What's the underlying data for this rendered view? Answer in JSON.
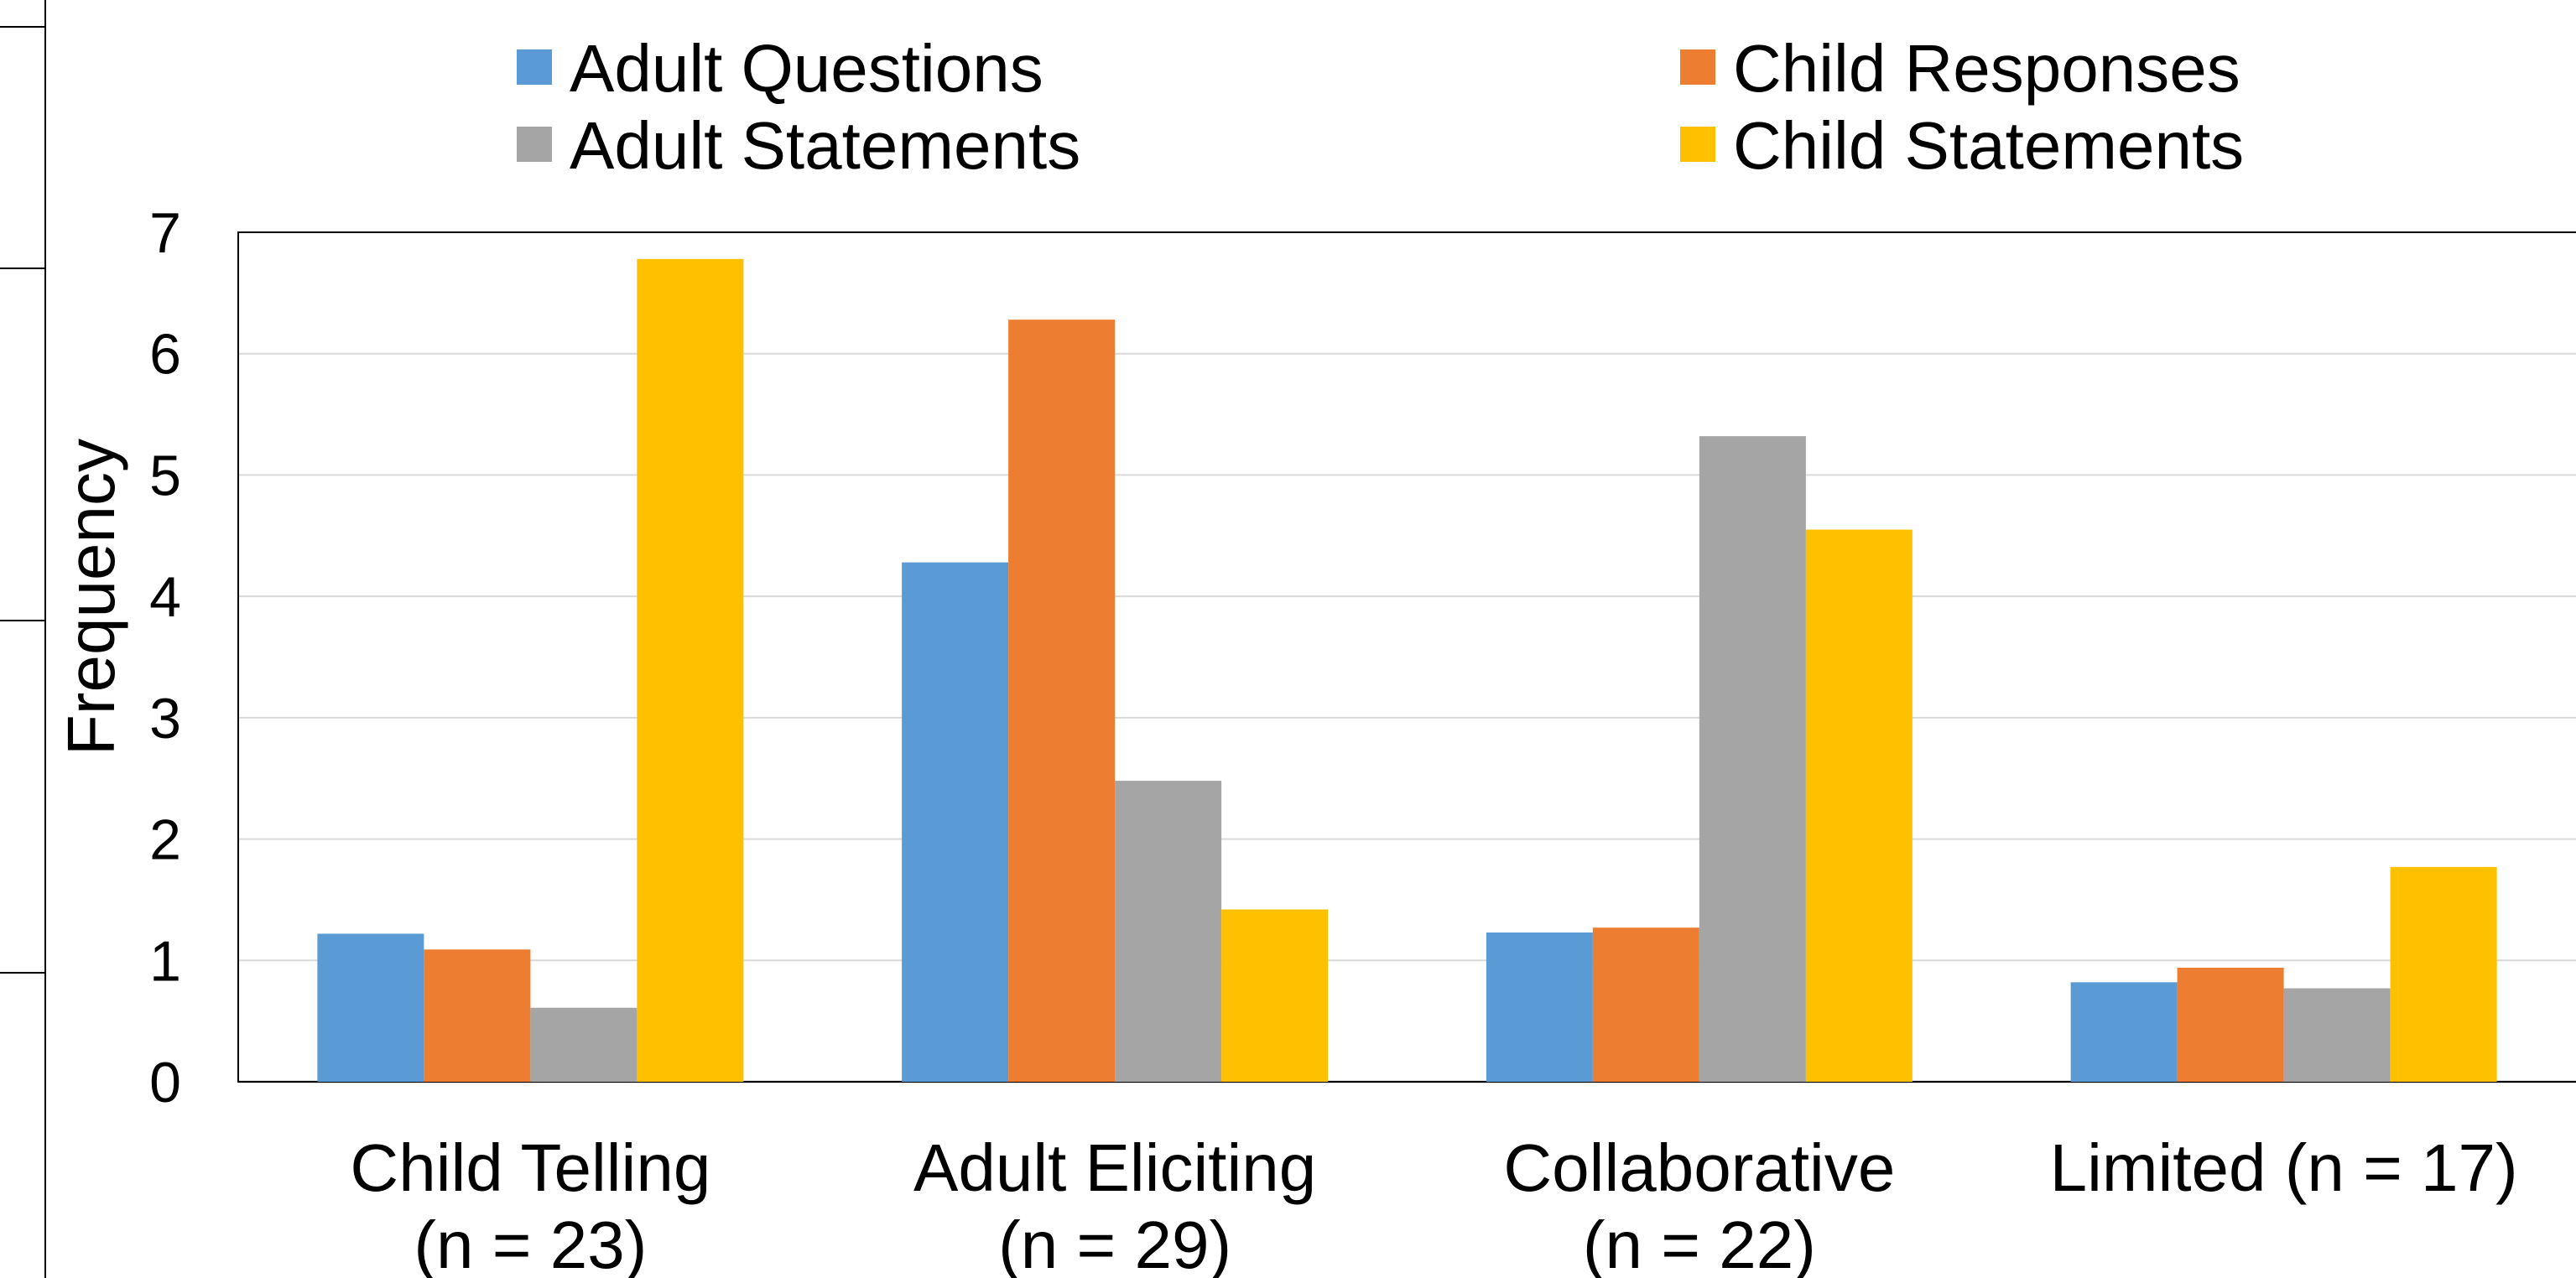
{
  "chart_data": {
    "type": "bar",
    "title": "",
    "xlabel": "",
    "ylabel": "Frequency",
    "ylim": [
      0,
      7
    ],
    "yticks": [
      "0",
      "1",
      "2",
      "3",
      "4",
      "5",
      "6",
      "7"
    ],
    "grid": true,
    "legend_position": "top",
    "categories": [
      [
        "Child Telling",
        "(n = 23)"
      ],
      [
        "Adult Eliciting",
        "(n = 29)"
      ],
      [
        "Collaborative",
        "(n = 22)"
      ],
      [
        "Limited (n = 17)"
      ]
    ],
    "series": [
      {
        "name": "Adult Questions",
        "color": "#5B9BD5",
        "values": [
          1.22,
          4.28,
          1.23,
          0.82
        ]
      },
      {
        "name": "Child Responses",
        "color": "#ED7D31",
        "values": [
          1.09,
          6.28,
          1.27,
          0.94
        ]
      },
      {
        "name": "Adult Statements",
        "color": "#A5A5A5",
        "values": [
          0.61,
          2.48,
          5.32,
          0.77
        ]
      },
      {
        "name": "Child Statements",
        "color": "#FFC000",
        "values": [
          6.78,
          1.42,
          4.55,
          1.77
        ]
      }
    ]
  }
}
